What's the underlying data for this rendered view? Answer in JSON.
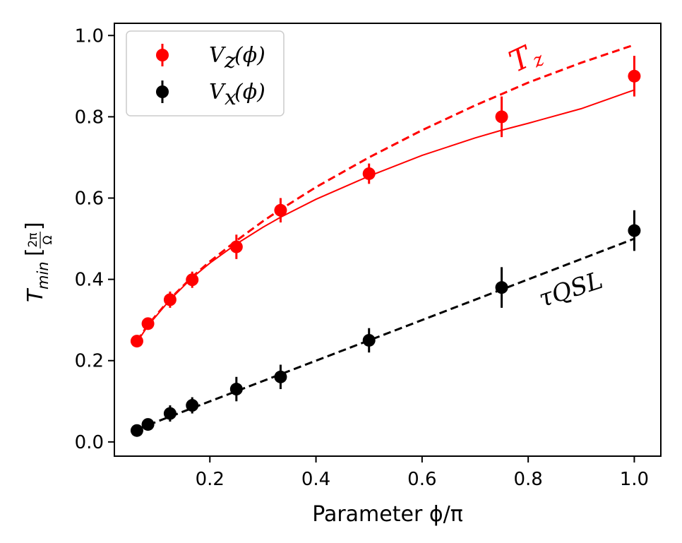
{
  "chart_data": {
    "type": "scatter",
    "title": "",
    "xlabel": "Parameter ϕ/π",
    "ylabel": "T_min [2π/Ω]",
    "ylabel_main": "T",
    "ylabel_sub": "min",
    "ylabel_unit_num": "2π",
    "ylabel_unit_den": "Ω",
    "xlim": [
      0.02,
      1.05
    ],
    "ylim": [
      -0.035,
      1.03
    ],
    "xticks": [
      "0.2",
      "0.4",
      "0.6",
      "0.8",
      "1.0"
    ],
    "yticks": [
      "0.0",
      "0.2",
      "0.4",
      "0.6",
      "0.8",
      "1.0"
    ],
    "legend_position": "top-left",
    "series": [
      {
        "name": "V_z(ϕ)",
        "legend_main": "V",
        "legend_sub": "z",
        "legend_arg": "(ϕ)",
        "color": "#ff0000",
        "x": [
          0.0625,
          0.0833,
          0.125,
          0.1667,
          0.25,
          0.3333,
          0.5,
          0.75,
          1.0
        ],
        "y": [
          0.248,
          0.291,
          0.35,
          0.399,
          0.48,
          0.57,
          0.66,
          0.8,
          0.9
        ],
        "err": [
          0.01,
          0.012,
          0.02,
          0.02,
          0.03,
          0.03,
          0.025,
          0.05,
          0.05
        ]
      },
      {
        "name": "V_x(ϕ)",
        "legend_main": "V",
        "legend_sub": "x",
        "legend_arg": "(ϕ)",
        "color": "#000000",
        "x": [
          0.0625,
          0.0833,
          0.125,
          0.1667,
          0.25,
          0.3333,
          0.5,
          0.75,
          1.0
        ],
        "y": [
          0.028,
          0.043,
          0.07,
          0.09,
          0.13,
          0.16,
          0.25,
          0.38,
          0.52
        ],
        "err": [
          0.01,
          0.01,
          0.02,
          0.02,
          0.03,
          0.03,
          0.03,
          0.05,
          0.05
        ]
      }
    ],
    "curves": [
      {
        "name": "T_z dashed",
        "color": "#ff0000",
        "style": "dashed",
        "x": [
          0.0625,
          0.0833,
          0.125,
          0.1667,
          0.2,
          0.25,
          0.3,
          0.3333,
          0.4,
          0.5,
          0.6,
          0.7,
          0.75,
          0.8,
          0.9,
          1.0
        ],
        "y": [
          0.248,
          0.288,
          0.352,
          0.406,
          0.444,
          0.495,
          0.543,
          0.572,
          0.627,
          0.7,
          0.767,
          0.828,
          0.856,
          0.884,
          0.933,
          0.977
        ]
      },
      {
        "name": "V_z fit",
        "color": "#ff0000",
        "style": "solid",
        "x": [
          0.0625,
          0.0833,
          0.125,
          0.1667,
          0.2,
          0.25,
          0.3,
          0.3333,
          0.4,
          0.5,
          0.6,
          0.7,
          0.75,
          0.8,
          0.9,
          1.0
        ],
        "y": [
          0.245,
          0.286,
          0.35,
          0.404,
          0.44,
          0.487,
          0.528,
          0.553,
          0.597,
          0.654,
          0.705,
          0.748,
          0.767,
          0.784,
          0.82,
          0.866
        ]
      },
      {
        "name": "τ_QSL dashed",
        "color": "#000000",
        "style": "dashed",
        "x": [
          0.0625,
          1.0
        ],
        "y": [
          0.031,
          0.5
        ]
      }
    ],
    "annotations": [
      {
        "text": "T",
        "sub": "z",
        "color": "#ff0000",
        "near_series": "V_z(ϕ)",
        "placement": "upper right near x=0.8"
      },
      {
        "text": "τQSL",
        "color": "#000000",
        "near_series": "V_x(ϕ)",
        "placement": "right of x=0.75 point"
      }
    ]
  }
}
